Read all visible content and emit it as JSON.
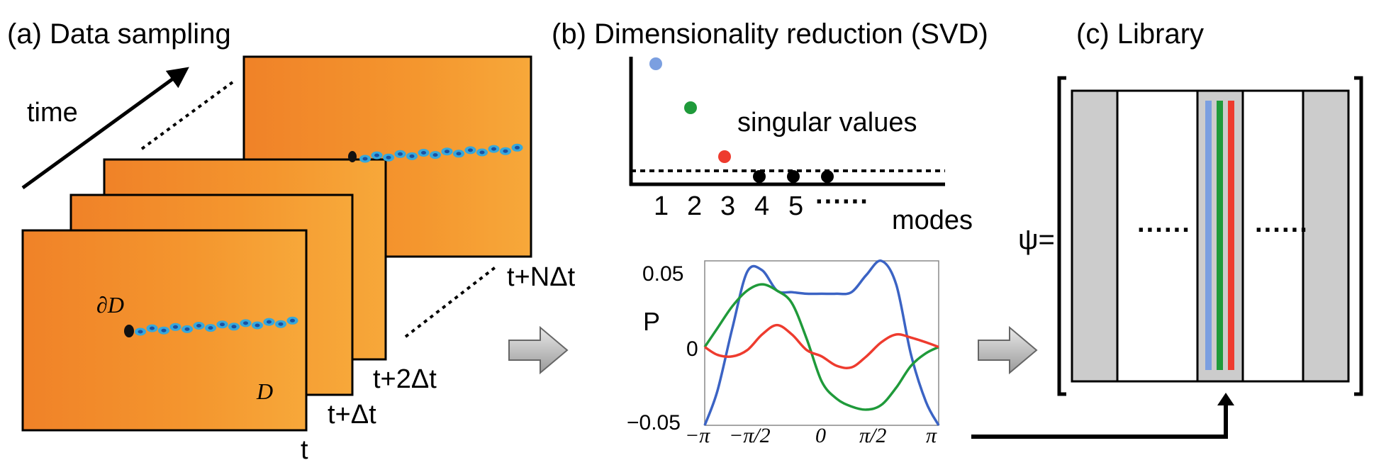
{
  "titles": {
    "a": "(a) Data sampling",
    "b": "(b) Dimensionality reduction (SVD)",
    "c": "(c) Library"
  },
  "panel_a": {
    "time_label": "time",
    "frame_labels": [
      "t",
      "t+Δt",
      "t+2Δt",
      "t+NΔt"
    ],
    "boundary_label": "∂D",
    "domain_label": "D",
    "colors": {
      "field": "#f28a30",
      "field_light": "#f7a63a",
      "wake": "#3aa6d8"
    }
  },
  "panel_b": {
    "sv_label": "singular values",
    "modes_label": "modes",
    "mode_ticks": [
      "1",
      "2",
      "3",
      "4",
      "5",
      "······"
    ],
    "sv_colors": [
      "#7b9fe0",
      "#1f9a3a",
      "#ee3b2e",
      "#000000",
      "#000000",
      "#000000"
    ],
    "plot_ylabel": "P",
    "plot_yticks": [
      "0.05",
      "0",
      "−0.05"
    ],
    "plot_xticks": [
      "−π",
      "−π/2",
      "0",
      "π/2",
      "π"
    ]
  },
  "panel_c": {
    "psi_label": "ψ=",
    "dots_left": "······",
    "dots_right": "······",
    "colors": {
      "gray": "#cccccc",
      "mode1": "#7b9fe0",
      "mode2": "#1f9a3a",
      "mode3": "#ee3b2e"
    }
  },
  "chart_data": {
    "type": "line",
    "x_ticks": [
      "−π",
      "−π/2",
      "0",
      "π/2",
      "π"
    ],
    "y_ticks": [
      "0.05",
      "0",
      "−0.05"
    ],
    "xlim": [
      -3.1416,
      3.1416
    ],
    "ylim": [
      -0.05,
      0.055
    ],
    "ylabel": "P",
    "series": [
      {
        "color": "#3b63c4",
        "x": [
          -3.1416,
          -2.8,
          -2.4,
          -2.0,
          -1.6,
          -1.2,
          -0.8,
          -0.4,
          0,
          0.4,
          0.8,
          1.2,
          1.6,
          2.0,
          2.4,
          2.8,
          3.1416
        ],
        "y": [
          -0.05,
          -0.028,
          0.012,
          0.048,
          0.049,
          0.036,
          0.035,
          0.034,
          0.034,
          0.034,
          0.035,
          0.046,
          0.055,
          0.04,
          -0.005,
          -0.035,
          -0.05
        ]
      },
      {
        "color": "#1f9a3a",
        "x": [
          -3.1416,
          -2.8,
          -2.4,
          -2.0,
          -1.6,
          -1.2,
          -0.8,
          -0.4,
          0,
          0.4,
          0.8,
          1.2,
          1.6,
          2.0,
          2.4,
          2.8,
          3.1416
        ],
        "y": [
          0,
          0.012,
          0.026,
          0.036,
          0.04,
          0.036,
          0.028,
          0.005,
          -0.022,
          -0.033,
          -0.038,
          -0.04,
          -0.037,
          -0.026,
          -0.012,
          -0.004,
          0
        ]
      },
      {
        "color": "#ee3b2e",
        "x": [
          -3.1416,
          -2.8,
          -2.4,
          -2.0,
          -1.6,
          -1.2,
          -0.8,
          -0.4,
          0,
          0.4,
          0.8,
          1.2,
          1.6,
          2.0,
          2.4,
          2.8,
          3.1416
        ],
        "y": [
          0,
          -0.005,
          -0.006,
          -0.002,
          0.008,
          0.014,
          0.008,
          -0.002,
          -0.006,
          -0.012,
          -0.013,
          -0.006,
          0.003,
          0.008,
          0.006,
          0.003,
          0
        ]
      }
    ]
  }
}
